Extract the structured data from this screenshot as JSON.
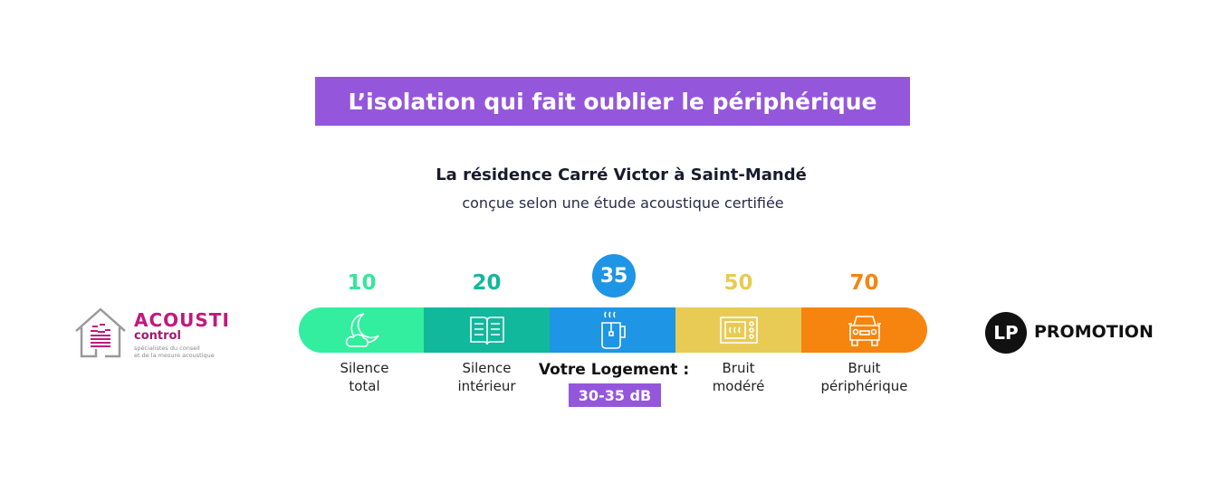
{
  "title": "L’isolation qui fait oublier le périphérique",
  "subtitle": "La résidence Carré Victor à Saint-Mandé",
  "subtitle2": "conçue selon une étude acoustique certifiée",
  "scale": [
    {
      "value": "10",
      "label1": "Silence",
      "label2": "total",
      "color": "#33EE9F",
      "num_color": "#33E89A",
      "icon": "moon-cloud-icon"
    },
    {
      "value": "20",
      "label1": "Silence",
      "label2": "intérieur",
      "color": "#12B89B",
      "num_color": "#12B89B",
      "icon": "book-icon"
    },
    {
      "value": "35",
      "label1": "",
      "label2": "",
      "color": "#1E95E5",
      "num_color": "#ffffff",
      "icon": "mug-icon"
    },
    {
      "value": "50",
      "label1": "Bruit",
      "label2": "modéré",
      "color": "#E8CB55",
      "num_color": "#E8CB55",
      "icon": "microwave-icon"
    },
    {
      "value": "70",
      "label1": "Bruit",
      "label2": "périphérique",
      "color": "#F5850F",
      "num_color": "#F5850F",
      "icon": "car-icon"
    }
  ],
  "current": {
    "label": "Votre Logement :",
    "range": "30-35 dB"
  },
  "logo_left": {
    "name": "ACOUSTI",
    "sub": "control",
    "tagline1": "spécialistes du conseil",
    "tagline2": "et de la mesure acoustique"
  },
  "logo_right": {
    "mark": "LP",
    "name": "PROMOTION"
  }
}
